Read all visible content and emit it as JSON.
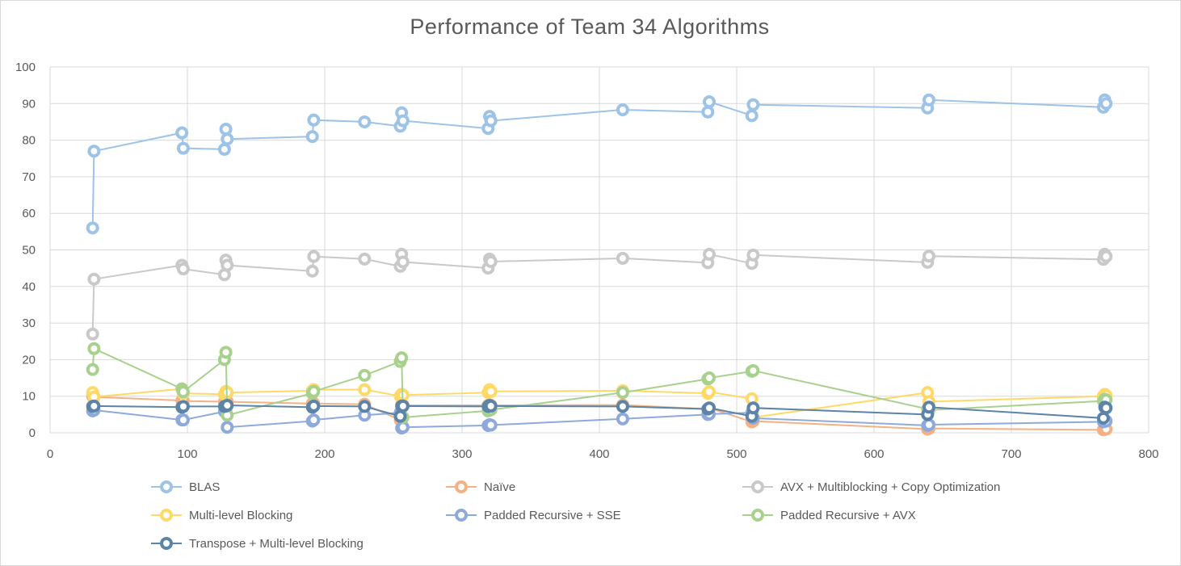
{
  "chart_data": {
    "type": "scatter",
    "title": "Performance of Team 34 Algorithms",
    "xlabel": "",
    "ylabel": "",
    "xlim": [
      0,
      800
    ],
    "ylim": [
      0,
      100
    ],
    "xticks": [
      "0",
      "100",
      "200",
      "300",
      "400",
      "500",
      "600",
      "700",
      "800"
    ],
    "yticks": [
      "0",
      "10",
      "20",
      "30",
      "40",
      "50",
      "60",
      "70",
      "80",
      "90",
      "100"
    ],
    "grid": "major gridlines",
    "legend_position": "bottom",
    "series": [
      {
        "name": "BLAS",
        "color": "#9DC3E6",
        "x": [
          31,
          32,
          96,
          97,
          127,
          128,
          129,
          191,
          192,
          229,
          255,
          256,
          257,
          319,
          320,
          321,
          417,
          479,
          480,
          511,
          512,
          639,
          640,
          767,
          768,
          769
        ],
        "y": [
          56,
          77,
          82,
          77.8,
          77.5,
          83,
          80.3,
          81,
          85.5,
          85,
          83.8,
          87.5,
          85.3,
          83.2,
          86.5,
          85.3,
          88.3,
          87.7,
          90.5,
          86.7,
          89.7,
          88.8,
          91,
          89,
          91,
          90
        ]
      },
      {
        "name": "Naïve",
        "color": "#F4B183",
        "x": [
          31,
          32,
          96,
          97,
          127,
          128,
          129,
          191,
          192,
          229,
          255,
          256,
          257,
          319,
          320,
          321,
          417,
          479,
          480,
          511,
          512,
          639,
          640,
          767,
          768,
          769
        ],
        "y": [
          10,
          9.8,
          8.8,
          8.7,
          8.5,
          8.6,
          8.5,
          8,
          8,
          7.8,
          3.5,
          7.6,
          7.5,
          7.5,
          7.6,
          7.5,
          7.6,
          6.5,
          6.8,
          3,
          3.2,
          1,
          1.2,
          0.8,
          1,
          1
        ]
      },
      {
        "name": "AVX + Multiblocking  + Copy Optimization",
        "color": "#C9C9C9",
        "x": [
          31,
          32,
          96,
          97,
          127,
          128,
          129,
          191,
          192,
          229,
          255,
          256,
          257,
          319,
          320,
          321,
          417,
          479,
          480,
          511,
          512,
          639,
          640,
          767,
          768,
          769
        ],
        "y": [
          27,
          42,
          45.8,
          44.8,
          43.2,
          47.2,
          45.8,
          44.2,
          48.2,
          47.5,
          45.5,
          48.8,
          46.7,
          45,
          47.5,
          46.8,
          47.7,
          46.5,
          48.8,
          46.3,
          48.6,
          46.6,
          48.3,
          47.4,
          48.8,
          48.2
        ]
      },
      {
        "name": "Multi-level Blocking",
        "color": "#FFD966",
        "x": [
          31,
          32,
          96,
          97,
          127,
          128,
          129,
          191,
          192,
          229,
          255,
          256,
          257,
          319,
          320,
          321,
          417,
          479,
          480,
          511,
          512,
          639,
          640,
          767,
          768,
          769
        ],
        "y": [
          11,
          9.8,
          12,
          10.8,
          10.5,
          11.3,
          11,
          11.5,
          11.8,
          11.8,
          10,
          10.5,
          10.3,
          11,
          11.8,
          11.3,
          11.5,
          10.8,
          11.2,
          9.3,
          4.2,
          11,
          8.5,
          10,
          10.5,
          10.2
        ]
      },
      {
        "name": "Padded Recursive + SSE",
        "color": "#8EA9DB",
        "x": [
          31,
          32,
          96,
          97,
          127,
          128,
          129,
          191,
          192,
          229,
          255,
          256,
          257,
          319,
          320,
          321,
          417,
          479,
          480,
          511,
          512,
          639,
          640,
          767,
          768,
          769
        ],
        "y": [
          6,
          6.2,
          3.5,
          3.5,
          5.8,
          5.8,
          1.5,
          3.2,
          3.5,
          4.8,
          5.5,
          1.3,
          1.5,
          2,
          2.2,
          2.1,
          3.8,
          5,
          5.1,
          5.5,
          4,
          2,
          2.2,
          3,
          3.1,
          3.2
        ]
      },
      {
        "name": "Padded Recursive + AVX",
        "color": "#A9D18E",
        "x": [
          31,
          32,
          96,
          97,
          127,
          128,
          129,
          191,
          192,
          229,
          255,
          256,
          257,
          319,
          320,
          321,
          417,
          479,
          480,
          511,
          512,
          639,
          640,
          767,
          768,
          769
        ],
        "y": [
          17.3,
          23,
          12,
          11.2,
          20,
          22,
          4.8,
          10.8,
          11.3,
          15.7,
          19.5,
          20.5,
          4.2,
          6,
          6.5,
          6.3,
          11,
          14.7,
          15,
          16.8,
          17,
          6.5,
          6.2,
          8.7,
          9.2,
          9
        ]
      },
      {
        "name": "Transpose + Multi-level Blocking",
        "color": "#5B84A8",
        "x": [
          31,
          32,
          96,
          97,
          127,
          128,
          129,
          191,
          192,
          229,
          255,
          256,
          257,
          319,
          320,
          321,
          417,
          479,
          480,
          511,
          512,
          639,
          640,
          767,
          768,
          769
        ],
        "y": [
          7.2,
          7.3,
          7,
          7.2,
          7.2,
          7.3,
          7.5,
          7,
          7.3,
          7.2,
          4.5,
          7.3,
          7.3,
          7.2,
          7.5,
          7.3,
          7.2,
          6.5,
          6.8,
          4.5,
          6.8,
          5,
          7,
          4,
          7,
          6.8
        ]
      }
    ]
  }
}
